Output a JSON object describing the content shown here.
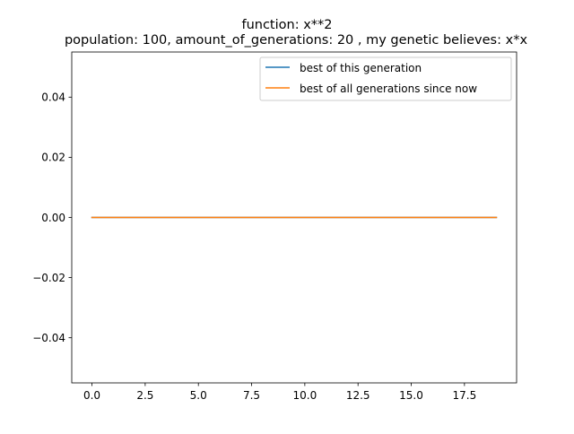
{
  "chart_data": {
    "type": "line",
    "title_lines": [
      "function:  x**2",
      "population: 100, amount_of_generations: 20 , my genetic believes: x*x"
    ],
    "xlabel": "",
    "ylabel": "",
    "xlim": [
      -0.95,
      19.95
    ],
    "ylim": [
      -0.055,
      0.055
    ],
    "x_ticks": [
      0,
      2.5,
      5,
      7.5,
      10,
      12.5,
      15,
      17.5
    ],
    "x_tick_labels": [
      "0.0",
      "2.5",
      "5.0",
      "7.5",
      "10.0",
      "12.5",
      "15.0",
      "17.5"
    ],
    "y_ticks": [
      -0.04,
      -0.02,
      0,
      0.02,
      0.04
    ],
    "y_tick_labels": [
      "−0.04",
      "−0.02",
      "0.00",
      "0.02",
      "0.04"
    ],
    "x": [
      0,
      1,
      2,
      3,
      4,
      5,
      6,
      7,
      8,
      9,
      10,
      11,
      12,
      13,
      14,
      15,
      16,
      17,
      18,
      19
    ],
    "series": [
      {
        "name": "best of this generation",
        "color": "#1f77b4",
        "values": [
          0,
          0,
          0,
          0,
          0,
          0,
          0,
          0,
          0,
          0,
          0,
          0,
          0,
          0,
          0,
          0,
          0,
          0,
          0,
          0
        ]
      },
      {
        "name": "best of all generations since now",
        "color": "#ff7f0e",
        "values": [
          0,
          0,
          0,
          0,
          0,
          0,
          0,
          0,
          0,
          0,
          0,
          0,
          0,
          0,
          0,
          0,
          0,
          0,
          0,
          0
        ]
      }
    ],
    "grid": false,
    "legend_position": "upper-right"
  }
}
